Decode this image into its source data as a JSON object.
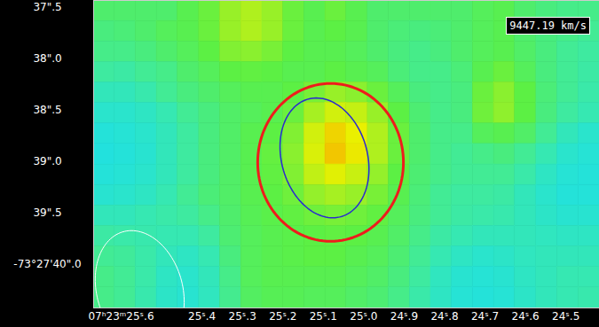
{
  "chart_data": {
    "type": "heatmap",
    "velocity_label": "9447.19 km/s",
    "dec_degrees": -73,
    "dec_minutes": 27,
    "xlim": [
      25.668,
      24.417
    ],
    "ylim": [
      37.43,
      40.43
    ],
    "xticks": [
      {
        "value": 25.6,
        "label": "07ʰ23ᵐ25ˢ.6"
      },
      {
        "value": 25.4,
        "label": "25ˢ.4"
      },
      {
        "value": 25.3,
        "label": "25ˢ.3"
      },
      {
        "value": 25.2,
        "label": "25ˢ.2"
      },
      {
        "value": 25.1,
        "label": "25ˢ.1"
      },
      {
        "value": 25.0,
        "label": "25ˢ.0"
      },
      {
        "value": 24.9,
        "label": "24ˢ.9"
      },
      {
        "value": 24.8,
        "label": "24ˢ.8"
      },
      {
        "value": 24.7,
        "label": "24ˢ.7"
      },
      {
        "value": 24.6,
        "label": "24ˢ.6"
      },
      {
        "value": 24.5,
        "label": "24ˢ.5"
      }
    ],
    "yticks": [
      {
        "value": 37.5,
        "label": "37\".5"
      },
      {
        "value": 38.0,
        "label": "38\".0"
      },
      {
        "value": 38.5,
        "label": "38\".5"
      },
      {
        "value": 39.0,
        "label": "39\".0"
      },
      {
        "value": 39.5,
        "label": "39\".5"
      },
      {
        "value": 40.0,
        "label": "-73°27'40\".0"
      }
    ],
    "grid": false,
    "colormap": [
      "#1ee0e6",
      "#3eeaa0",
      "#5cf044",
      "#a6f022",
      "#eaf000",
      "#f4b800"
    ],
    "zlim": [
      2,
      10
    ],
    "ra_edges": [
      25.668,
      25.616,
      25.564,
      25.512,
      25.46,
      25.407,
      25.355,
      25.303,
      25.251,
      25.199,
      25.147,
      25.095,
      25.043,
      24.99,
      24.938,
      24.886,
      24.834,
      24.782,
      24.73,
      24.678,
      24.626,
      24.573,
      24.521,
      24.469,
      24.417
    ],
    "dec_edges": [
      37.43,
      37.63,
      37.83,
      38.03,
      38.23,
      38.43,
      38.63,
      38.83,
      39.03,
      39.23,
      39.43,
      39.63,
      39.83,
      40.03,
      40.23,
      40.43
    ],
    "cells": [
      [
        4.5,
        4.5,
        4.5,
        4.5,
        5,
        5.5,
        6.5,
        7,
        6.5,
        5.5,
        5,
        5.5,
        5,
        4.5,
        4.5,
        4.5,
        4.5,
        4.5,
        4.8,
        5,
        4.5,
        4.2,
        4,
        4
      ],
      [
        4.2,
        4.3,
        4.5,
        4.8,
        5,
        5.5,
        6.5,
        7,
        6.5,
        5.5,
        5,
        5.2,
        5,
        4.5,
        4.3,
        4.2,
        4.3,
        4.5,
        4.8,
        5,
        4.5,
        4.2,
        4,
        3.8
      ],
      [
        4,
        4,
        4.2,
        4.5,
        4.8,
        5.2,
        6,
        6.2,
        5.8,
        5.2,
        5,
        5,
        4.8,
        4.5,
        4.2,
        4,
        4.2,
        4.5,
        4.8,
        5,
        4.6,
        4.2,
        3.8,
        3.6
      ],
      [
        3.6,
        3.5,
        3.8,
        4,
        4.5,
        4.8,
        5.2,
        5.3,
        5.2,
        5,
        5,
        5.2,
        5,
        4.8,
        4.3,
        4,
        4,
        4.3,
        5,
        5.5,
        4.8,
        4.2,
        3.8,
        3.5
      ],
      [
        3,
        3,
        3.3,
        3.8,
        4.2,
        4.5,
        4.8,
        5,
        5,
        5.2,
        5.8,
        6.5,
        6.2,
        5.5,
        4.8,
        4.2,
        4,
        4.2,
        5.5,
        6.2,
        5.2,
        4.3,
        3.8,
        3.4
      ],
      [
        2.6,
        2.6,
        2.8,
        3.2,
        3.8,
        4.2,
        4.6,
        4.8,
        5,
        5.5,
        6.8,
        7.8,
        7.5,
        6.5,
        5.2,
        4.4,
        4,
        4.2,
        5.6,
        6.3,
        5.2,
        4.2,
        3.6,
        3.2
      ],
      [
        2.3,
        2.4,
        2.6,
        3,
        3.6,
        4.2,
        4.6,
        5,
        5.2,
        6,
        7.8,
        9.2,
        8.4,
        7,
        5.5,
        4.5,
        4,
        4,
        4.8,
        5,
        4.6,
        3.8,
        3,
        2.6
      ],
      [
        2.2,
        2.3,
        2.5,
        3,
        3.6,
        4.2,
        4.6,
        5,
        5.4,
        6.2,
        8,
        9.6,
        8.6,
        7,
        5.5,
        4.5,
        4,
        3.8,
        4,
        4.2,
        3.8,
        3.2,
        2.6,
        2.4
      ],
      [
        2.3,
        2.4,
        2.6,
        3,
        3.6,
        4.2,
        4.6,
        5,
        5.3,
        6,
        7.4,
        8.2,
        7.6,
        6.4,
        5.2,
        4.4,
        4,
        3.8,
        3.8,
        3.8,
        3.4,
        2.8,
        2.4,
        2.3
      ],
      [
        2.5,
        2.6,
        2.8,
        3.2,
        3.8,
        4.3,
        4.6,
        5,
        5.2,
        5.6,
        6.4,
        6.8,
        6.5,
        5.8,
        5,
        4.3,
        3.8,
        3.6,
        3.6,
        3.5,
        3,
        2.6,
        2.3,
        2.3
      ],
      [
        3,
        3,
        3.2,
        3.4,
        3.6,
        4,
        4.5,
        4.9,
        5.1,
        5.3,
        5.6,
        5.8,
        5.6,
        5.3,
        4.8,
        4.2,
        3.8,
        3.5,
        3.4,
        3.3,
        3,
        2.7,
        2.5,
        2.5
      ],
      [
        3.5,
        3.4,
        3.3,
        3.2,
        3.2,
        3.6,
        4.4,
        4.8,
        5,
        5.1,
        5.2,
        5.3,
        5.2,
        5,
        4.6,
        4,
        3.5,
        3.2,
        3,
        3,
        3,
        2.9,
        2.8,
        2.8
      ],
      [
        3.8,
        3.7,
        3.4,
        3,
        2.8,
        3.2,
        4.2,
        4.8,
        5,
        5.1,
        5.2,
        5.2,
        5,
        4.8,
        4.4,
        3.8,
        3.2,
        2.8,
        2.6,
        2.7,
        2.9,
        3,
        3,
        3
      ],
      [
        4,
        3.8,
        3.4,
        2.8,
        2.6,
        3,
        4,
        4.8,
        5,
        5,
        5,
        5,
        4.8,
        4.6,
        4.2,
        3.6,
        2.9,
        2.5,
        2.4,
        2.5,
        2.8,
        3,
        3.2,
        3.2
      ],
      [
        4,
        3.8,
        3.3,
        2.7,
        2.5,
        2.9,
        3.9,
        4.7,
        4.9,
        4.9,
        4.8,
        4.8,
        4.6,
        4.4,
        4,
        3.4,
        2.8,
        2.4,
        2.3,
        2.4,
        2.7,
        3,
        3.2,
        3.3
      ]
    ],
    "regions": [
      {
        "type": "circle",
        "ra": 25.082,
        "dec": 39.01,
        "radius": 0.77,
        "color": "#ee1c1c"
      },
      {
        "type": "ellipse",
        "ra": 25.097,
        "dec": 38.966,
        "major": 0.6,
        "minor": 0.45,
        "position_angle": 20,
        "color": "#2a2ad0"
      },
      {
        "type": "ellipse",
        "ra": 25.554,
        "dec": 40.26,
        "major": 0.6,
        "minor": 0.45,
        "position_angle": 20,
        "color": "#ffffff"
      }
    ]
  }
}
